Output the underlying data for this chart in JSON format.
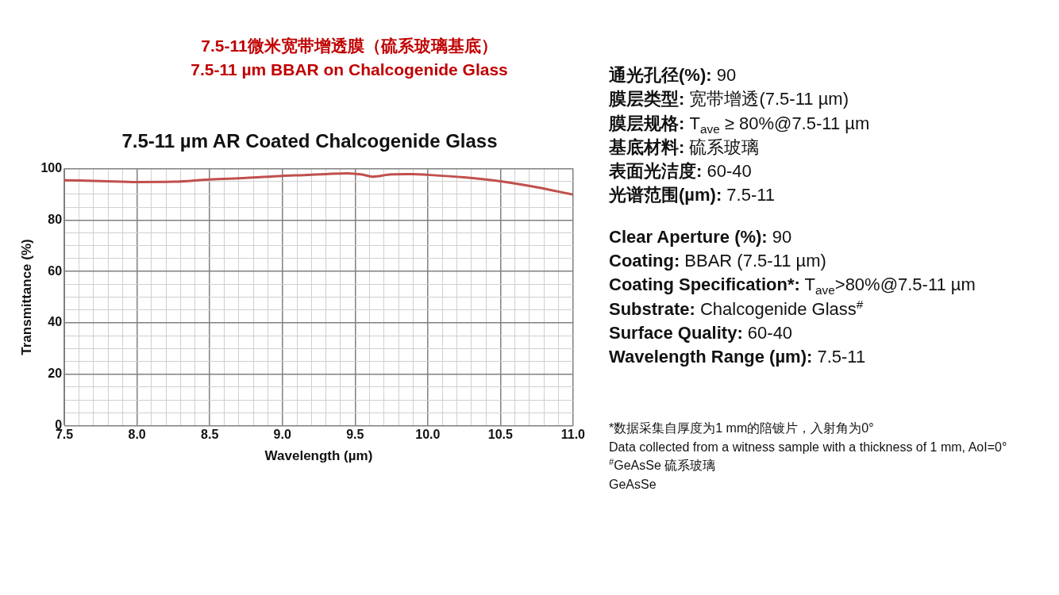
{
  "chart_data": {
    "type": "line",
    "title": "7.5-11微米宽带增透膜（硫系玻璃基底）",
    "subtitle": "7.5-11 µm BBAR on Chalcogenide Glass",
    "xlabel": "Wavelength (µm)",
    "ylabel": "Transmittance (%)",
    "x": [
      7.5,
      7.75,
      8.0,
      8.25,
      8.5,
      8.75,
      9.0,
      9.15,
      9.3,
      9.45,
      9.55,
      9.62,
      9.75,
      9.9,
      10.0,
      10.25,
      10.5,
      10.75,
      11.0
    ],
    "series": [
      {
        "color": "#c0504d",
        "values": [
          95.5,
          95.2,
          94.8,
          94.9,
          95.8,
          96.4,
          97.2,
          97.5,
          97.9,
          98.2,
          97.7,
          96.9,
          97.8,
          97.9,
          97.6,
          96.6,
          95.1,
          92.8,
          89.9
        ]
      }
    ],
    "xlim": [
      7.5,
      11.0
    ],
    "ylim": [
      0,
      100
    ],
    "xticks": [
      7.5,
      {
        "value": 7.6,
        "label": null
      },
      {
        "value": 7.7,
        "label": null
      },
      {
        "value": 7.8,
        "label": null
      },
      {
        "value": 7.9,
        "label": null
      },
      {
        "value": 8.0,
        "label": "8.0"
      },
      {
        "value": 8.1,
        "label": null
      },
      {
        "value": 8.2,
        "label": null
      },
      {
        "value": 8.3,
        "label": null
      },
      {
        "value": 8.4,
        "label": null
      },
      8.5,
      {
        "value": 8.6,
        "label": null
      },
      {
        "value": 8.7,
        "label": null
      },
      {
        "value": 8.8,
        "label": null
      },
      {
        "value": 8.9,
        "label": null
      },
      {
        "value": 9.0,
        "label": "9.0"
      },
      {
        "value": 9.1,
        "label": null
      },
      {
        "value": 9.2,
        "label": null
      },
      {
        "value": 9.3,
        "label": null
      },
      {
        "value": 9.4,
        "label": null
      },
      9.5,
      {
        "value": 9.6,
        "label": null
      },
      {
        "value": 9.7,
        "label": null
      },
      {
        "value": 9.8,
        "label": null
      },
      {
        "value": 9.9,
        "label": null
      },
      {
        "value": 10.0,
        "label": "10.0"
      },
      {
        "value": 10.1,
        "label": null
      },
      {
        "value": 10.2,
        "label": null
      },
      {
        "value": 10.3,
        "label": null
      },
      {
        "value": 10.4,
        "label": null
      },
      10.5,
      {
        "value": 10.6,
        "label": null
      },
      {
        "value": 10.7,
        "label": null
      },
      {
        "value": 10.8,
        "label": null
      },
      {
        "value": 10.9,
        "label": null
      },
      {
        "value": 11.0,
        "label": "11.0"
      }
    ],
    "yticks": [
      0,
      {
        "value": 5,
        "label": null
      },
      {
        "value": 10,
        "label": null
      },
      {
        "value": 15,
        "label": null
      },
      20,
      {
        "value": 25,
        "label": null
      },
      {
        "value": 30,
        "label": null
      },
      {
        "value": 35,
        "label": null
      },
      40,
      {
        "value": 45,
        "label": null
      },
      {
        "value": 50,
        "label": null
      },
      {
        "value": 55,
        "label": null
      },
      60,
      {
        "value": 65,
        "label": null
      },
      {
        "value": 70,
        "label": null
      },
      {
        "value": 75,
        "label": null
      },
      80,
      {
        "value": 85,
        "label": null
      },
      {
        "value": 90,
        "label": null
      },
      {
        "value": 95,
        "label": null
      },
      100
    ],
    "grid": true,
    "legend": false,
    "marker": "none",
    "line_style": "solid",
    "annotations": [
      "7.5-11 µm AR Coated Chalcogenide Glass",
      "通光孔径(%): 90",
      "膜层类型: 宽带增透(7.5-11 µm)",
      "膜层规格: T$_{ave}$ ≥ 80%@7.5-11 µm",
      "基底材料: 硫系玻璃",
      "表面光洁度: 60-40",
      "光谱范围(µm): 7.5-11",
      "Clear Aperture (%): 90",
      "Coating: BBAR (7.5-11 µm)",
      "Coating Specification*: T$_{ave}$>80%@7.5-11 µm",
      "Substrate: Chalcogenide Glass$^{#}$",
      "Surface Quality: 60-40",
      "Wavelength Range (µm): 7.5-11",
      "*数据采集自厚度为1 mm的陪镀片，入射角为0°",
      "Data collected from a witness sample with a thickness of 1 mm, AoI=0°",
      "$^{#}$GeAsSe 硫系玻璃",
      "GeAsSe"
    ]
  }
}
